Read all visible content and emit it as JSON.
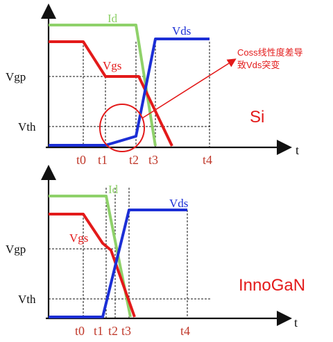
{
  "colors": {
    "id": "#8fd16a",
    "vgs": "#e31a1a",
    "vds": "#1c2fd6",
    "axis": "#111111",
    "annotation": "#e31a1a",
    "tick_label": "#c0392b",
    "axis_label": "#111111"
  },
  "top_panel": {
    "platform_label": "Si",
    "curve_labels": {
      "id": "Id",
      "vgs": "Vgs",
      "vds": "Vds"
    },
    "y_labels": {
      "vgp": "Vgp",
      "vth": "Vth"
    },
    "t_labels": [
      "t0",
      "t1",
      "t2",
      "t3",
      "t4"
    ],
    "time_axis_label": "t",
    "annotation": {
      "line1": "Coss线性度差导",
      "line2": "致Vds突变"
    }
  },
  "bottom_panel": {
    "platform_label": "InnoGaN",
    "curve_labels": {
      "id": "Id",
      "vgs": "Vgs",
      "vds": "Vds"
    },
    "y_labels": {
      "vgp": "Vgp",
      "vth": "Vth"
    },
    "t_labels": [
      "t0",
      "t1",
      "t2",
      "t3",
      "t4"
    ],
    "time_axis_label": "t"
  }
}
